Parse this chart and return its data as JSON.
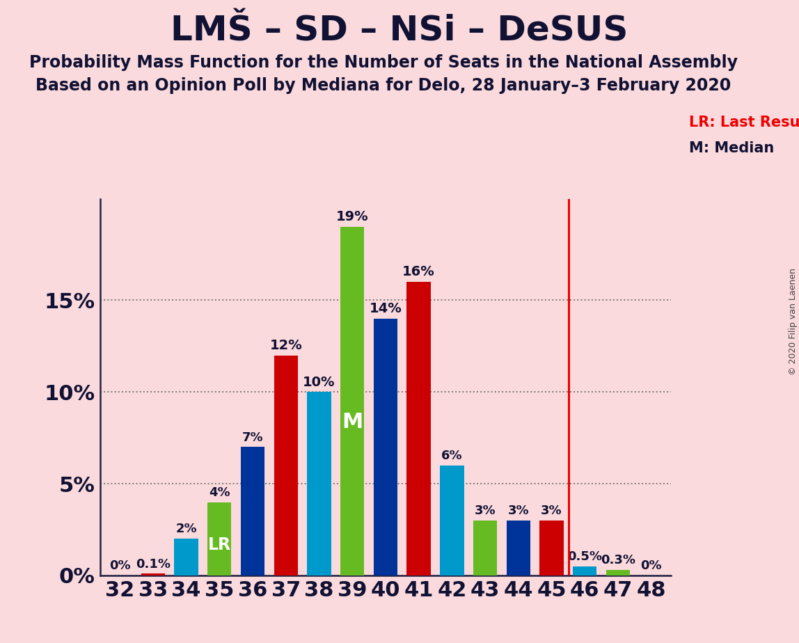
{
  "title": "LMŠ – SD – NSi – DeSUS",
  "subtitle1": "Probability Mass Function for the Number of Seats in the National Assembly",
  "subtitle2": "Based on an Opinion Poll by Mediana for Delo, 28 January–3 February 2020",
  "copyright": "© 2020 Filip van Laenen",
  "seats": [
    32,
    33,
    34,
    35,
    36,
    37,
    38,
    39,
    40,
    41,
    42,
    43,
    44,
    45,
    46,
    47,
    48
  ],
  "values": [
    0.0,
    0.1,
    2.0,
    4.0,
    7.0,
    12.0,
    10.0,
    19.0,
    14.0,
    16.0,
    6.0,
    3.0,
    3.0,
    3.0,
    0.5,
    0.3,
    0.0
  ],
  "labels": [
    "0%",
    "0.1%",
    "2%",
    "4%",
    "7%",
    "12%",
    "10%",
    "19%",
    "14%",
    "16%",
    "6%",
    "3%",
    "3%",
    "3%",
    "0.5%",
    "0.3%",
    "0%"
  ],
  "color_sequence": [
    "#003399",
    "#cc0000",
    "#0099cc",
    "#66bb22"
  ],
  "lr_seat": 35,
  "median_seat": 39,
  "lr_line_seat": 45,
  "background_color": "#fadadd",
  "ylim": [
    0,
    20.5
  ],
  "yticks": [
    0,
    5,
    10,
    15
  ],
  "ytick_labels": [
    "0%",
    "5%",
    "10%",
    "15%"
  ],
  "title_fontsize": 36,
  "subtitle_fontsize": 17,
  "axis_label_fontsize": 22,
  "bar_label_fontsize": 13,
  "bar_label_fontsize_large": 14,
  "lr_label_fontsize": 17,
  "m_label_fontsize": 22,
  "annotation_fontsize": 15,
  "copyright_fontsize": 9,
  "bar_width": 0.72,
  "grid_color": "#777777",
  "text_color": "#111133",
  "red_line_color": "#ee0000"
}
